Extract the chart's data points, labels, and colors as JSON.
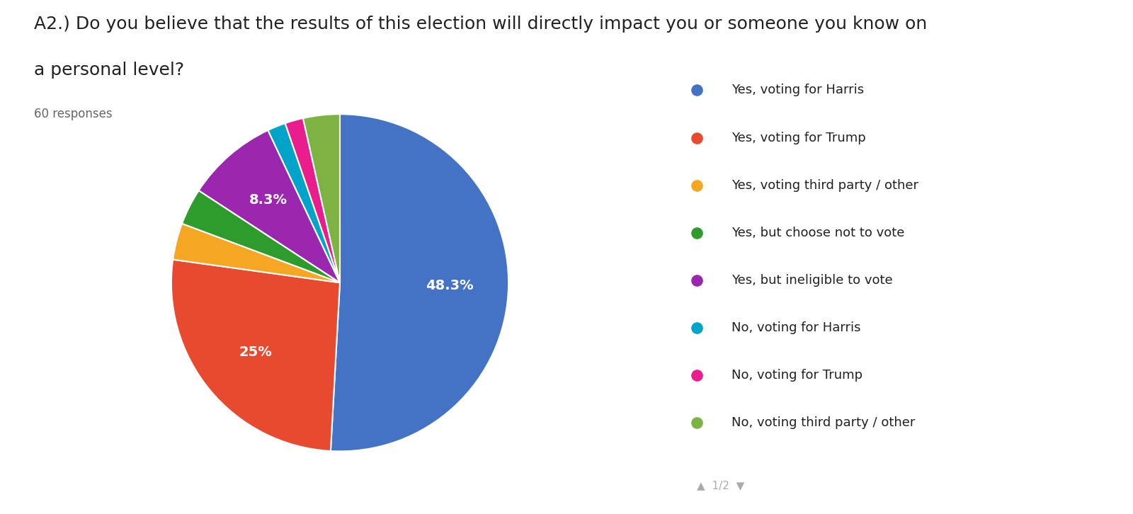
{
  "title_line1": "A2.) Do you believe that the results of this election will directly impact you or someone you know on",
  "title_line2": "a personal level?",
  "subtitle": "60 responses",
  "labels": [
    "Yes, voting for Harris",
    "Yes, voting for Trump",
    "Yes, voting third party / other",
    "Yes, but choose not to vote",
    "Yes, but ineligible to vote",
    "No, voting for Harris",
    "No, voting for Trump",
    "No, voting third party / other"
  ],
  "values": [
    29,
    15,
    2,
    2,
    5,
    1,
    1,
    2
  ],
  "colors": [
    "#4472C4",
    "#E84A2F",
    "#F5A623",
    "#2D9C2D",
    "#9B27AF",
    "#00A4C8",
    "#E91E8C",
    "#7CB342"
  ],
  "pct_labels": [
    "48.3%",
    "25%",
    "",
    "",
    "8.3%",
    "",
    "",
    ""
  ],
  "title_fontsize": 18,
  "subtitle_fontsize": 12,
  "legend_fontsize": 13,
  "pct_fontsize": 14
}
